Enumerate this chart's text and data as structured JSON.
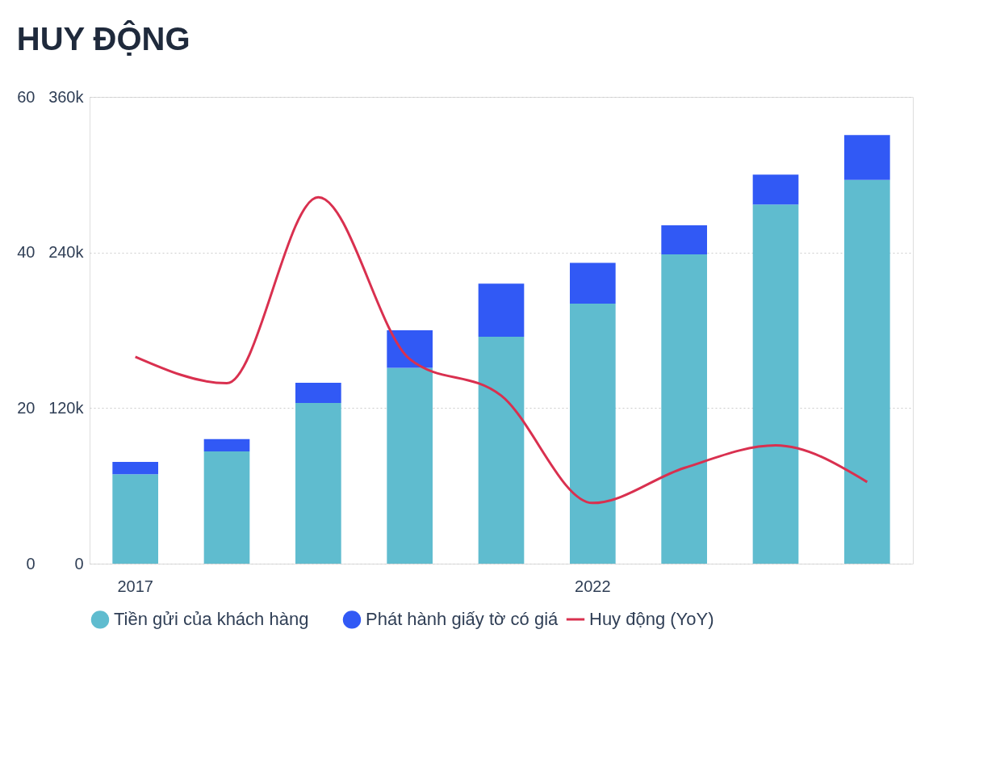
{
  "chart_data": {
    "type": "bar",
    "title": "HUY ĐỘNG",
    "categories": [
      "2017",
      null,
      null,
      null,
      null,
      "2022",
      null,
      null,
      null
    ],
    "stacked": true,
    "series": [
      {
        "name": "Tiền gửi của khách hàng",
        "color": "#5fbccf",
        "axis": "y2",
        "values": [
          69000,
          86500,
          124000,
          151000,
          175000,
          200500,
          238500,
          277000,
          296000
        ]
      },
      {
        "name": "Phát hành giấy tờ có giá",
        "color": "#3159f5",
        "axis": "y2",
        "values": [
          9500,
          9500,
          15500,
          29000,
          41000,
          31500,
          22500,
          23000,
          34500
        ]
      },
      {
        "name": "Huy động (YoY)",
        "type": "line",
        "color": "#d9304f",
        "axis": "y",
        "values": [
          26.6,
          23.2,
          47.1,
          26.3,
          21.6,
          7.8,
          12.3,
          15.2,
          10.5
        ]
      }
    ],
    "ylim": [
      0,
      60
    ],
    "yticks": [
      0,
      20,
      40,
      60
    ],
    "y2lim": [
      0,
      360000
    ],
    "y2ticks": [
      0,
      {
        "value": 120000,
        "label": "120k"
      },
      {
        "value": 240000,
        "label": "240k"
      },
      {
        "value": 360000,
        "label": "360k"
      }
    ],
    "grid": "y",
    "legend": "bottom",
    "marker": "none",
    "line_style": "solid"
  }
}
